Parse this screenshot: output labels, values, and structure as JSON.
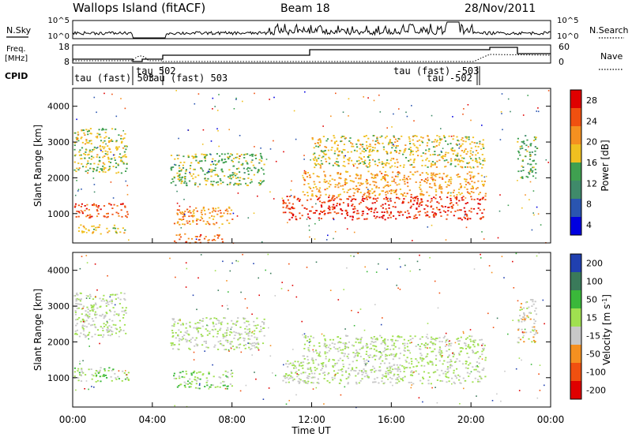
{
  "header": {
    "station": "Wallops Island (fitACF)",
    "beam": "Beam 18",
    "date": "28/Nov/2011"
  },
  "strip_panels": {
    "sky_label": "N.Sky",
    "search_label": "N.Search",
    "freq_label_1": "Freq.",
    "freq_label_2": "[MHz]",
    "nave_label": "Nave",
    "cpid_label": "CPID",
    "noise_ticks_left": [
      "10^5",
      "10^0"
    ],
    "noise_ticks_right": [
      "10^5",
      "10^0"
    ],
    "freq_ticks_left": [
      "18",
      "8"
    ],
    "freq_ticks_right": [
      "60",
      "0"
    ],
    "cpid_labels": [
      "tau (fast) 503",
      "tau 502",
      "tau (fast) 503",
      "tau (fast) -503",
      "tau -502"
    ]
  },
  "x_axis": {
    "label": "Time UT",
    "ticks": [
      "00:00",
      "04:00",
      "08:00",
      "12:00",
      "16:00",
      "20:00",
      "00:00"
    ]
  },
  "power_panel": {
    "ylabel": "Slant Range [km]",
    "yticks": [
      "4000",
      "3000",
      "2000",
      "1000"
    ],
    "colorbar_label": "Power [dB]",
    "colorbar_ticks": [
      "28",
      "24",
      "20",
      "16",
      "12",
      "8",
      "4"
    ]
  },
  "velocity_panel": {
    "ylabel": "Slant Range [km]",
    "yticks": [
      "4000",
      "3000",
      "2000",
      "1000"
    ],
    "colorbar_label": "Velocity [m s",
    "colorbar_label_sup": "-1",
    "colorbar_label_end": "]",
    "colorbar_ticks": [
      "200",
      "100",
      "50",
      "15",
      "-15",
      "-50",
      "-100",
      "-200"
    ]
  },
  "chart_data": [
    {
      "type": "heatmap",
      "title": "Wallops Island (fitACF)",
      "subtitle": "Beam 18  28/Nov/2011",
      "xlabel": "Time UT",
      "ylabel": "Slant Range [km]",
      "colorbar": "Power [dB]",
      "xlim_hours": [
        0,
        24
      ],
      "ylim_km": [
        180,
        4500
      ],
      "clim": [
        0,
        32
      ],
      "colors": [
        "#0000e0",
        "#2a55b0",
        "#3f8a6a",
        "#3fa050",
        "#f0c020",
        "#f59020",
        "#f05010",
        "#e00000"
      ],
      "regions": [
        {
          "t": [
            0.05,
            2.7
          ],
          "r": [
            2150,
            3400
          ],
          "power": 17
        },
        {
          "t": [
            0.05,
            2.8
          ],
          "r": [
            900,
            1300
          ],
          "power": 26
        },
        {
          "t": [
            0.1,
            2.6
          ],
          "r": [
            450,
            700
          ],
          "power": 18
        },
        {
          "t": [
            4.9,
            9.6
          ],
          "r": [
            1800,
            2700
          ],
          "power": 15
        },
        {
          "t": [
            5.0,
            8.0
          ],
          "r": [
            700,
            1200
          ],
          "power": 22
        },
        {
          "t": [
            4.9,
            7.5
          ],
          "r": [
            200,
            450
          ],
          "power": 25
        },
        {
          "t": [
            10.5,
            20.7
          ],
          "r": [
            850,
            1500
          ],
          "power": 28
        },
        {
          "t": [
            11.5,
            20.7
          ],
          "r": [
            1500,
            2200
          ],
          "power": 21
        },
        {
          "t": [
            12.0,
            20.7
          ],
          "r": [
            2300,
            3200
          ],
          "power": 18
        },
        {
          "t": [
            22.3,
            23.3
          ],
          "r": [
            2000,
            3200
          ],
          "power": 14
        }
      ]
    },
    {
      "type": "heatmap",
      "xlabel": "Time UT",
      "ylabel": "Slant Range [km]",
      "colorbar": "Velocity [m s-1]",
      "xlim_hours": [
        0,
        24
      ],
      "ylim_km": [
        180,
        4500
      ],
      "clim": [
        -250,
        250
      ],
      "colors": [
        "#e00000",
        "#f05010",
        "#f59020",
        "#c8c8c8",
        "#a0e050",
        "#3ab83a",
        "#3a7a5a",
        "#2040b0"
      ],
      "regions": [
        {
          "t": [
            0.05,
            2.7
          ],
          "r": [
            2150,
            3400
          ],
          "velocity": 0
        },
        {
          "t": [
            0.05,
            2.8
          ],
          "r": [
            900,
            1300
          ],
          "velocity": 30
        },
        {
          "t": [
            4.9,
            9.6
          ],
          "r": [
            1800,
            2700
          ],
          "velocity": 0
        },
        {
          "t": [
            5.0,
            8.0
          ],
          "r": [
            700,
            1200
          ],
          "velocity": 40
        },
        {
          "t": [
            10.5,
            20.7
          ],
          "r": [
            850,
            1500
          ],
          "velocity": 0
        },
        {
          "t": [
            11.5,
            20.7
          ],
          "r": [
            1500,
            2200
          ],
          "velocity": 0
        },
        {
          "t": [
            22.3,
            23.3
          ],
          "r": [
            2000,
            3200
          ],
          "velocity": -30
        }
      ]
    }
  ]
}
